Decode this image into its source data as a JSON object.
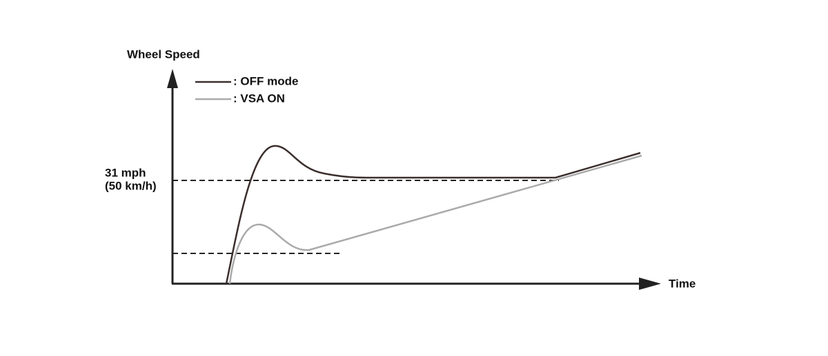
{
  "axis": {
    "y_label": "Wheel Speed",
    "x_label": "Time"
  },
  "legend": [
    {
      "label": ": OFF mode"
    },
    {
      "label": ": VSA ON"
    }
  ],
  "threshold": {
    "line1": "31 mph",
    "line2": "(50 km/h)"
  }
}
